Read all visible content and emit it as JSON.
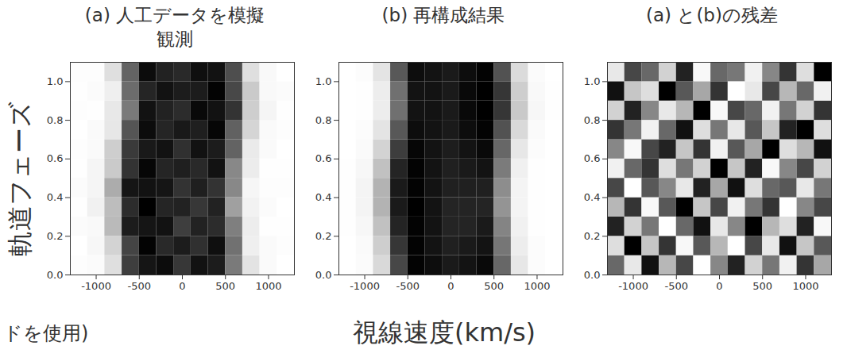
{
  "chart_data": [
    {
      "type": "heatmap",
      "title": "(a) 人工データを模擬観測",
      "ylabel": "軌道フェーズ",
      "annotations": [
        "ドを使用)"
      ],
      "x_edges": [
        -1300,
        -1100,
        -900,
        -700,
        -500,
        -300,
        -100,
        100,
        300,
        500,
        700,
        900,
        1100,
        1300
      ],
      "y_edges": [
        0,
        0.1,
        0.2,
        0.3,
        0.4,
        0.5,
        0.6,
        0.7,
        0.8,
        0.9,
        1.0,
        1.1
      ],
      "xlim": [
        -1300,
        1300
      ],
      "ylim": [
        0,
        1.1
      ],
      "xticks": [
        -1000,
        -500,
        0,
        500,
        1000
      ],
      "yticks": [
        {
          "value": 0,
          "label": "0.0"
        },
        0.2,
        0.4,
        0.6,
        0.8,
        {
          "value": 1,
          "label": "1.0"
        }
      ],
      "cells": [
        [
          0.03,
          0.04,
          0.22,
          0.8,
          0.92,
          0.95,
          0.82,
          0.93,
          0.9,
          0.6,
          0.2,
          0.05,
          0.01
        ],
        [
          0.01,
          0.07,
          0.28,
          0.78,
          0.98,
          0.86,
          0.9,
          0.84,
          0.94,
          0.63,
          0.13,
          0.05,
          0.03
        ],
        [
          0.04,
          0.06,
          0.38,
          0.9,
          0.92,
          0.93,
          0.8,
          0.88,
          0.85,
          0.58,
          0.14,
          0.02,
          0.02
        ],
        [
          0.02,
          0.12,
          0.37,
          0.85,
          0.99,
          0.87,
          0.88,
          0.82,
          0.88,
          0.47,
          0.11,
          0.04,
          0.01
        ],
        [
          0.04,
          0.09,
          0.43,
          0.92,
          0.93,
          0.92,
          0.83,
          0.89,
          0.83,
          0.55,
          0.08,
          0.03,
          0.03
        ],
        [
          0.02,
          0.09,
          0.32,
          0.83,
          0.97,
          0.87,
          0.89,
          0.86,
          0.93,
          0.55,
          0.15,
          0.02,
          0.02
        ],
        [
          0.03,
          0.05,
          0.3,
          0.81,
          0.91,
          0.93,
          0.84,
          0.93,
          0.9,
          0.68,
          0.16,
          0.05,
          0.01
        ],
        [
          0.01,
          0.05,
          0.18,
          0.73,
          0.95,
          0.87,
          0.91,
          0.89,
          0.97,
          0.69,
          0.27,
          0.05,
          0.03
        ],
        [
          0.03,
          0.02,
          0.17,
          0.6,
          0.93,
          0.88,
          0.85,
          0.96,
          0.93,
          0.83,
          0.3,
          0.09,
          0.02
        ],
        [
          0.02,
          0.04,
          0.13,
          0.65,
          0.87,
          0.93,
          0.9,
          0.9,
          0.98,
          0.77,
          0.32,
          0.06,
          0.04
        ],
        [
          0.03,
          0.03,
          0.22,
          0.68,
          0.95,
          0.88,
          0.86,
          0.94,
          0.93,
          0.75,
          0.22,
          0.06,
          0.01
        ]
      ]
    },
    {
      "type": "heatmap",
      "title": "(b) 再構成結果",
      "xlabel": "視線速度(km/s)",
      "x_edges": [
        -1300,
        -1100,
        -900,
        -700,
        -500,
        -300,
        -100,
        100,
        300,
        500,
        700,
        900,
        1100,
        1300
      ],
      "y_edges": [
        0,
        0.1,
        0.2,
        0.3,
        0.4,
        0.5,
        0.6,
        0.7,
        0.8,
        0.9,
        1.0,
        1.1
      ],
      "xlim": [
        -1300,
        1300
      ],
      "ylim": [
        0,
        1.1
      ],
      "xticks": [
        -1000,
        -500,
        0,
        500,
        1000
      ],
      "yticks": [
        {
          "value": 0,
          "label": "0.0"
        },
        0.2,
        0.4,
        0.6,
        0.8,
        {
          "value": 1,
          "label": "1.0"
        }
      ],
      "cells": [
        [
          0.02,
          0.05,
          0.25,
          0.75,
          0.95,
          0.92,
          0.88,
          0.9,
          0.93,
          0.65,
          0.18,
          0.04,
          0.02
        ],
        [
          0.02,
          0.06,
          0.3,
          0.8,
          0.95,
          0.9,
          0.86,
          0.88,
          0.9,
          0.6,
          0.15,
          0.04,
          0.02
        ],
        [
          0.03,
          0.08,
          0.35,
          0.85,
          0.95,
          0.9,
          0.85,
          0.85,
          0.88,
          0.55,
          0.12,
          0.03,
          0.02
        ],
        [
          0.03,
          0.1,
          0.4,
          0.88,
          0.96,
          0.9,
          0.85,
          0.85,
          0.85,
          0.5,
          0.1,
          0.03,
          0.02
        ],
        [
          0.03,
          0.1,
          0.4,
          0.88,
          0.95,
          0.9,
          0.86,
          0.86,
          0.86,
          0.52,
          0.1,
          0.03,
          0.02
        ],
        [
          0.03,
          0.08,
          0.35,
          0.85,
          0.95,
          0.9,
          0.86,
          0.88,
          0.9,
          0.58,
          0.13,
          0.03,
          0.02
        ],
        [
          0.02,
          0.06,
          0.28,
          0.78,
          0.94,
          0.9,
          0.87,
          0.9,
          0.93,
          0.65,
          0.18,
          0.04,
          0.02
        ],
        [
          0.02,
          0.04,
          0.2,
          0.7,
          0.92,
          0.9,
          0.88,
          0.92,
          0.95,
          0.72,
          0.25,
          0.06,
          0.02
        ],
        [
          0.02,
          0.03,
          0.15,
          0.62,
          0.9,
          0.9,
          0.88,
          0.93,
          0.96,
          0.8,
          0.32,
          0.08,
          0.03
        ],
        [
          0.02,
          0.03,
          0.15,
          0.62,
          0.9,
          0.9,
          0.88,
          0.93,
          0.96,
          0.8,
          0.3,
          0.07,
          0.03
        ],
        [
          0.02,
          0.04,
          0.2,
          0.7,
          0.92,
          0.9,
          0.88,
          0.92,
          0.95,
          0.72,
          0.24,
          0.05,
          0.02
        ]
      ]
    },
    {
      "type": "heatmap",
      "title": "(a) と(b)の残差",
      "x_edges": [
        -1300,
        -1100,
        -900,
        -700,
        -500,
        -300,
        -100,
        100,
        300,
        500,
        700,
        900,
        1100,
        1300
      ],
      "y_edges": [
        0,
        0.1,
        0.2,
        0.3,
        0.4,
        0.5,
        0.6,
        0.7,
        0.8,
        0.9,
        1.0,
        1.1
      ],
      "xlim": [
        -1300,
        1300
      ],
      "ylim": [
        0,
        1.1
      ],
      "xticks": [
        -1000,
        -500,
        0,
        500,
        1000
      ],
      "yticks": [
        {
          "value": 0,
          "label": "0.0"
        },
        0.2,
        0.4,
        0.6,
        0.8,
        {
          "value": 1,
          "label": "1.0"
        }
      ],
      "cells": [
        [
          0.3,
          -0.6,
          0.8,
          -0.2,
          0.5,
          -0.9,
          0.1,
          0.7,
          -0.4,
          0.2,
          -0.7,
          0.6,
          -0.1
        ],
        [
          -0.5,
          0.9,
          -0.3,
          0.6,
          -0.8,
          0.4,
          -0.2,
          -0.9,
          0.5,
          -0.6,
          0.8,
          -0.3,
          0.4
        ],
        [
          0.7,
          -0.4,
          0.2,
          -0.9,
          0.3,
          0.8,
          -0.6,
          0.1,
          0.9,
          -0.2,
          -0.5,
          0.7,
          -0.8
        ],
        [
          -0.2,
          0.6,
          -0.8,
          0.4,
          0.9,
          -0.3,
          0.5,
          -0.7,
          0.2,
          0.6,
          -0.9,
          0.1,
          0.5
        ],
        [
          0.5,
          -0.9,
          0.4,
          0.1,
          -0.6,
          0.7,
          -0.1,
          0.8,
          -0.5,
          0.3,
          0.4,
          -0.6,
          0.2
        ],
        [
          -0.7,
          0.3,
          0.6,
          -0.5,
          0.2,
          -0.4,
          0.9,
          -0.3,
          0.7,
          -0.8,
          0.1,
          0.5,
          -0.4
        ],
        [
          0.1,
          -0.8,
          0.5,
          0.7,
          -0.3,
          0.6,
          -0.7,
          0.4,
          -0.1,
          0.9,
          -0.5,
          -0.2,
          0.8
        ],
        [
          0.6,
          0.2,
          -0.7,
          0.3,
          0.8,
          -0.5,
          0.2,
          -0.6,
          0.4,
          -0.3,
          0.7,
          0.9,
          -0.5
        ],
        [
          -0.4,
          0.7,
          0.1,
          -0.6,
          -0.2,
          0.9,
          -0.8,
          0.5,
          0.3,
          -0.7,
          0.2,
          -0.4,
          0.6
        ],
        [
          0.8,
          -0.3,
          -0.5,
          0.9,
          0.4,
          -0.1,
          0.6,
          -0.9,
          -0.6,
          0.5,
          -0.2,
          0.3,
          -0.7
        ],
        [
          -0.6,
          0.5,
          0.3,
          -0.4,
          0.7,
          -0.8,
          0.3,
          0.2,
          -0.7,
          0.1,
          0.6,
          -0.5,
          0.9
        ]
      ]
    }
  ]
}
